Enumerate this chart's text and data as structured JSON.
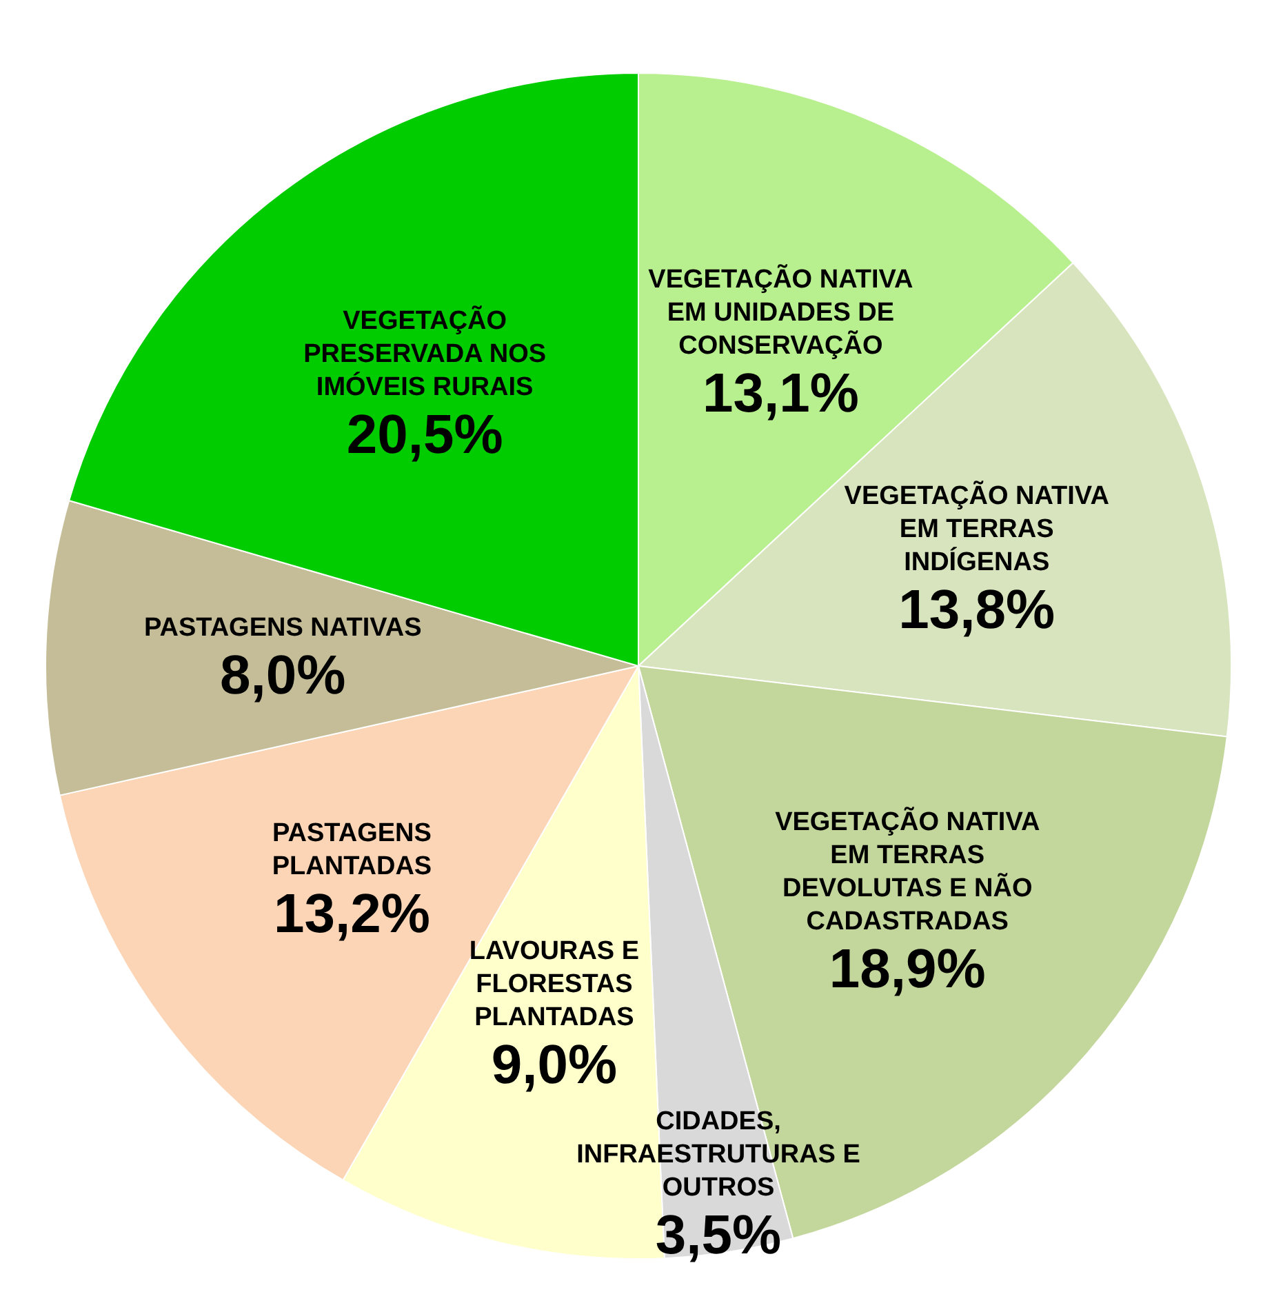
{
  "chart_data": {
    "type": "pie",
    "categories": [
      "VEGETAÇÃO NATIVA EM UNIDADES DE CONSERVAÇÃO",
      "VEGETAÇÃO NATIVA EM TERRAS INDÍGENAS",
      "VEGETAÇÃO NATIVA EM TERRAS DEVOLUTAS E NÃO CADASTRADAS",
      "CIDADES, INFRAESTRUTURAS E OUTROS",
      "LAVOURAS E FLORESTAS PLANTADAS",
      "PASTAGENS PLANTADAS",
      "PASTAGENS NATIVAS",
      "VEGETAÇÃO PRESERVADA NOS IMÓVEIS RURAIS"
    ],
    "values": [
      13.1,
      13.8,
      18.9,
      3.5,
      9.0,
      13.2,
      8.0,
      20.5
    ],
    "value_labels": [
      "13,1%",
      "13,8%",
      "18,9%",
      "3,5%",
      "9,0%",
      "13,2%",
      "8,0%",
      "20,5%"
    ],
    "colors": [
      "#b9f08f",
      "#d7e4bd",
      "#c3d69b",
      "#d9d9d9",
      "#ffffcc",
      "#fbd5b5",
      "#c4bd97",
      "#00cc00"
    ],
    "legend": false
  }
}
